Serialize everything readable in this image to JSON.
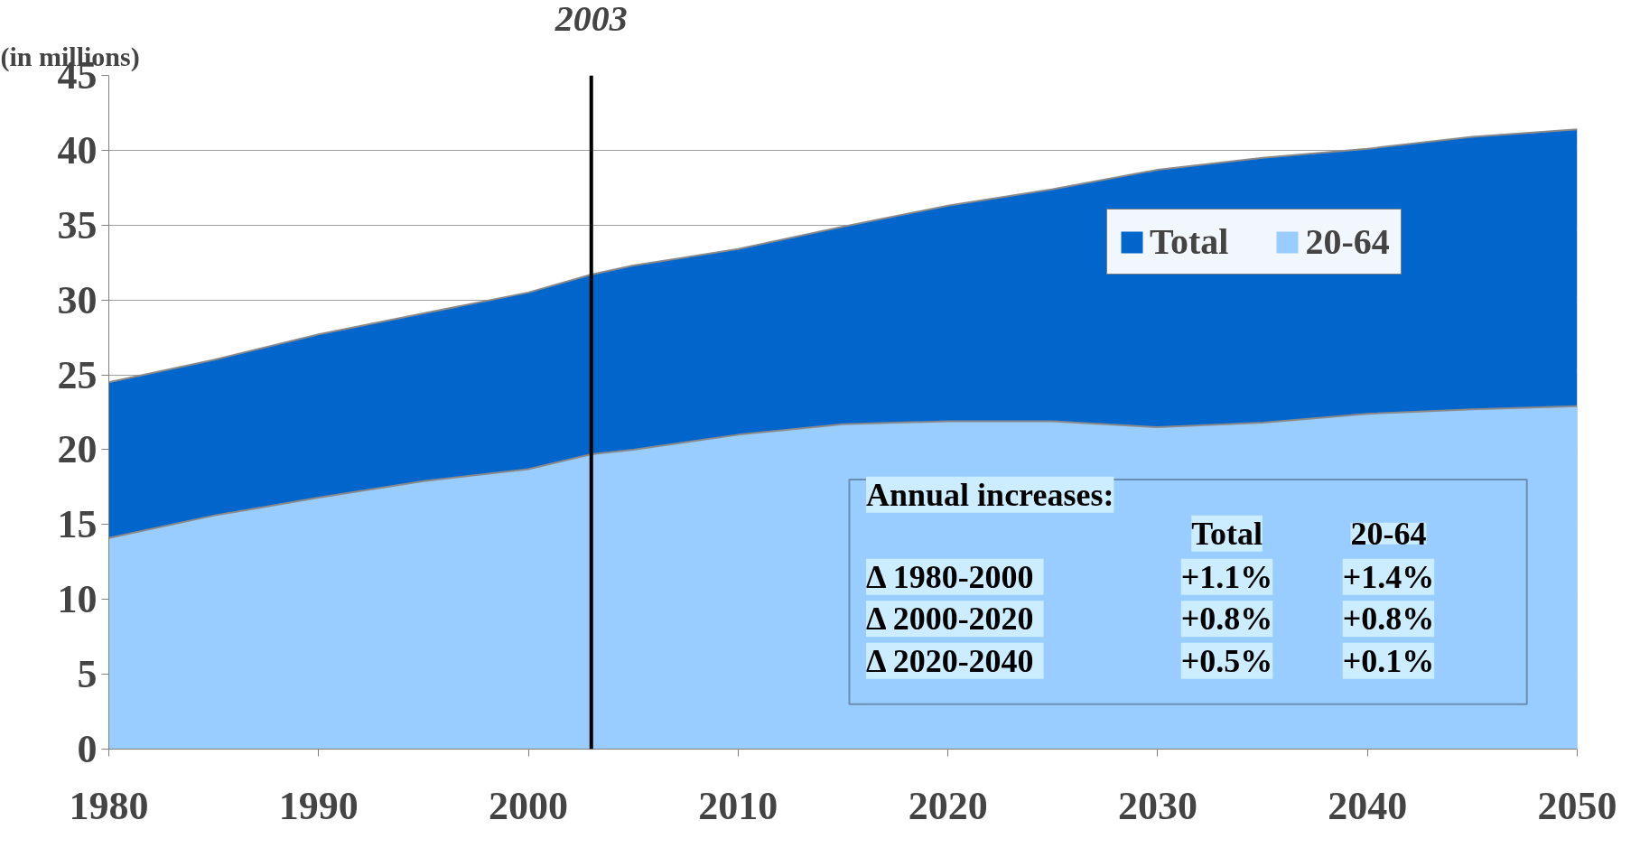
{
  "chart_data": {
    "type": "area",
    "ylabel": "(in millions)",
    "x": [
      1980,
      1985,
      1990,
      1995,
      2000,
      2003,
      2005,
      2010,
      2015,
      2020,
      2025,
      2030,
      2035,
      2040,
      2045,
      2050
    ],
    "series": [
      {
        "name": "Total",
        "color": "#0066cc",
        "values": [
          24.5,
          26.0,
          27.7,
          29.1,
          30.5,
          31.7,
          32.3,
          33.4,
          34.9,
          36.3,
          37.4,
          38.7,
          39.5,
          40.1,
          40.9,
          41.4
        ]
      },
      {
        "name": "20-64",
        "color": "#99ccff",
        "values": [
          14.1,
          15.6,
          16.8,
          17.9,
          18.7,
          19.7,
          20.0,
          21.0,
          21.7,
          21.9,
          21.9,
          21.5,
          21.8,
          22.4,
          22.7,
          22.9
        ]
      }
    ],
    "xlim": [
      1980,
      2050
    ],
    "xticks": [
      1980,
      1990,
      2000,
      2010,
      2020,
      2030,
      2040,
      2050
    ],
    "ylim": [
      0,
      45
    ],
    "yticks": [
      0,
      5,
      10,
      15,
      20,
      25,
      30,
      35,
      40,
      45
    ],
    "grid": "y",
    "legend": "top right",
    "ref_lines": [
      {
        "axis": "x",
        "value": 2003,
        "label": "2003",
        "color": "#000000"
      }
    ],
    "annotations": [
      "Annual increases:",
      "Total",
      "20-64",
      "Δ  1980-2000",
      "+1.1%",
      "+1.4%",
      "Δ  2000-2020",
      "+0.8%",
      "+0.8%",
      "Δ  2020-2040",
      "+0.5%",
      "+0.1%"
    ]
  }
}
